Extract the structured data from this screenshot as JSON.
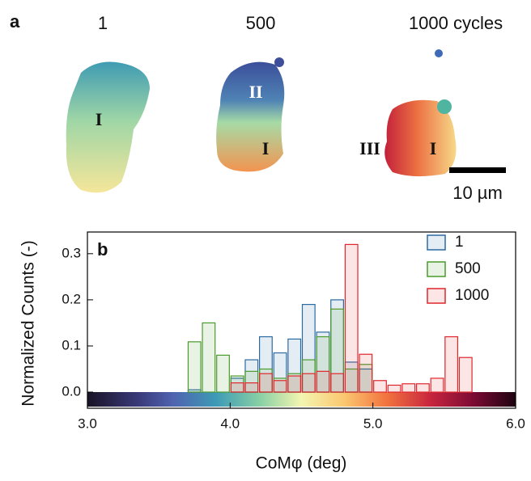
{
  "panel_a": {
    "label": "a",
    "titles": [
      "1",
      "500",
      "1000 cycles"
    ],
    "regions": [
      "I",
      "II",
      "I",
      "III",
      "I"
    ],
    "scale_bar": "10 µm"
  },
  "chart_data": {
    "type": "histogram",
    "panel_label": "b",
    "xlabel": "CoMφ (deg)",
    "ylabel": "Normalized Counts (-)",
    "bins": [
      3.7,
      3.8,
      3.9,
      4.0,
      4.1,
      4.2,
      4.3,
      4.4,
      4.5,
      4.6,
      4.7,
      4.8,
      4.9,
      5.0,
      5.1,
      5.2,
      5.3,
      5.4,
      5.5,
      5.6,
      5.7
    ],
    "series": [
      {
        "name": "1",
        "color": "#2b6aa3",
        "values": [
          0.005,
          0,
          0,
          0.03,
          0.07,
          0.12,
          0.085,
          0.115,
          0.19,
          0.13,
          0.2,
          0.065,
          0.05,
          0,
          0,
          0,
          0,
          0,
          0,
          0
        ]
      },
      {
        "name": "500",
        "color": "#4b9a2c",
        "values": [
          0.109,
          0.15,
          0.08,
          0.035,
          0.045,
          0.05,
          0.03,
          0.04,
          0.07,
          0.12,
          0.18,
          0.05,
          0.06,
          0,
          0,
          0,
          0,
          0,
          0,
          0
        ]
      },
      {
        "name": "1000",
        "color": "#e0262c",
        "values": [
          0,
          0,
          0,
          0.02,
          0.02,
          0.04,
          0.025,
          0.035,
          0.04,
          0.045,
          0.04,
          0.32,
          0.082,
          0.025,
          0.015,
          0.018,
          0.018,
          0.03,
          0.12,
          0.075
        ]
      }
    ],
    "xlim": [
      3.0,
      6.0
    ],
    "ylim": [
      -0.035,
      0.347
    ],
    "xticks": [
      {
        "value": 3,
        "label": "3.0"
      },
      {
        "value": 4,
        "label": "4.0"
      },
      {
        "value": 5,
        "label": "5.0"
      },
      {
        "value": 6,
        "label": "6.0"
      }
    ],
    "yticks": [
      {
        "value": 0,
        "label": "0.0"
      },
      0.1,
      0.2,
      0.3
    ],
    "legend": "upper-right"
  }
}
